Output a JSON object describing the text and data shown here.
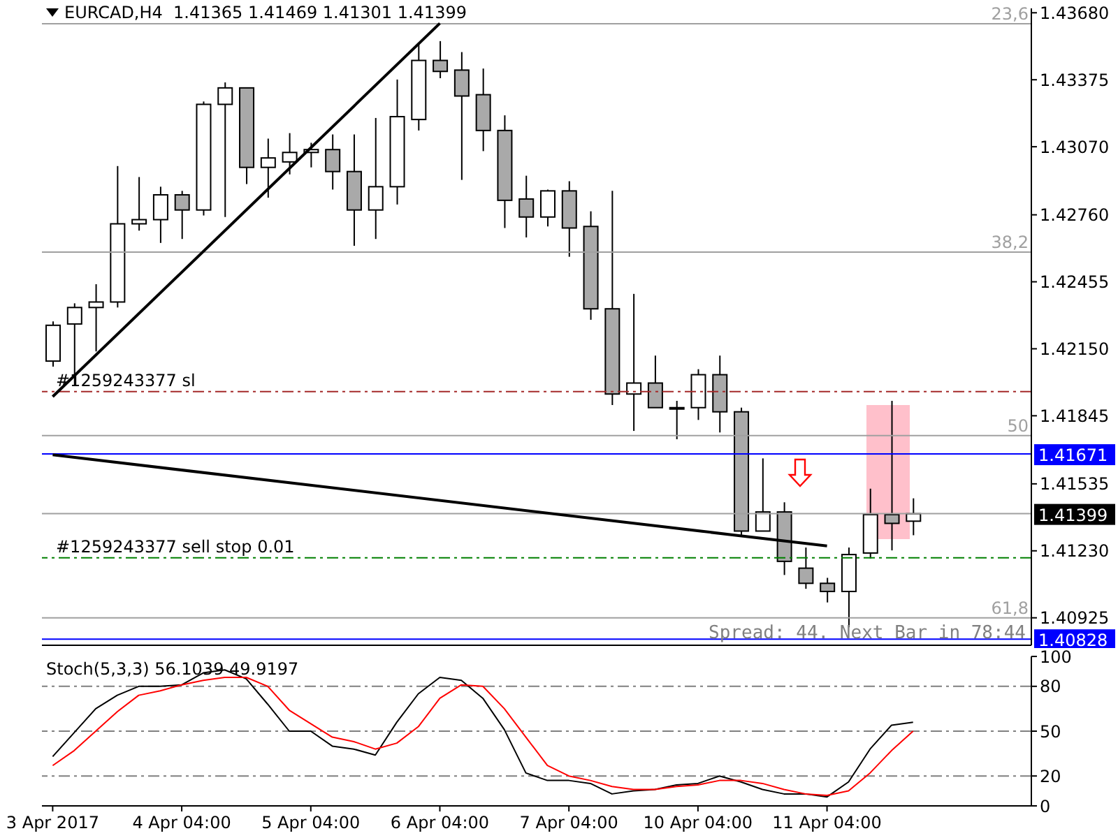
{
  "chart_data": [
    {
      "type": "candlestick",
      "title": "EURCAD,H4  1.41365 1.41469 1.41301 1.41399",
      "tick_labels": "y",
      "categories": [
        "3 Apr 2017",
        null,
        null,
        null,
        null,
        null,
        "4 Apr 04:00",
        null,
        null,
        null,
        null,
        null,
        "5 Apr 04:00",
        null,
        null,
        null,
        null,
        null,
        "6 Apr 04:00",
        null,
        null,
        null,
        null,
        null,
        "7 Apr 04:00",
        null,
        null,
        null,
        null,
        null,
        "10 Apr 04:00",
        null,
        null,
        null,
        null,
        null,
        "11 Apr 04:00",
        null,
        null,
        null,
        null,
        null,
        null,
        null,
        null,
        null
      ],
      "ohlc": [
        [
          1.42094,
          1.42275,
          1.42069,
          1.42257
        ],
        [
          1.42263,
          1.42357,
          1.41982,
          1.42338
        ],
        [
          1.42338,
          1.42444,
          1.42138,
          1.42363
        ],
        [
          1.42363,
          1.42982,
          1.42338,
          1.42719
        ],
        [
          1.42719,
          1.42932,
          1.42688,
          1.42738
        ],
        [
          1.42738,
          1.42888,
          1.42632,
          1.42851
        ],
        [
          1.42851,
          1.42869,
          1.4265,
          1.42782
        ],
        [
          1.42782,
          1.43276,
          1.42757,
          1.43263
        ],
        [
          1.43263,
          1.43363,
          1.4275,
          1.43338
        ],
        [
          1.43338,
          1.43338,
          1.429,
          1.42976
        ],
        [
          1.42976,
          1.43107,
          1.42838,
          1.43019
        ],
        [
          1.43001,
          1.43132,
          1.42944,
          1.43044
        ],
        [
          1.43044,
          1.43088,
          1.42976,
          1.43057
        ],
        [
          1.43057,
          1.43126,
          1.42875,
          1.42957
        ],
        [
          1.42957,
          1.43126,
          1.42619,
          1.42782
        ],
        [
          1.42782,
          1.43201,
          1.4265,
          1.42888
        ],
        [
          1.42888,
          1.43376,
          1.42807,
          1.43207
        ],
        [
          1.43194,
          1.43538,
          1.43144,
          1.43463
        ],
        [
          1.43463,
          1.43551,
          1.43382,
          1.43413
        ],
        [
          1.43419,
          1.43501,
          1.42919,
          1.43301
        ],
        [
          1.43307,
          1.43426,
          1.4305,
          1.43144
        ],
        [
          1.43144,
          1.43213,
          1.427,
          1.42826
        ],
        [
          1.42832,
          1.42938,
          1.42657,
          1.4275
        ],
        [
          1.4275,
          1.42875,
          1.42707,
          1.42869
        ],
        [
          1.42869,
          1.42913,
          1.42569,
          1.427
        ],
        [
          1.42707,
          1.42776,
          1.42282,
          1.42332
        ],
        [
          1.42332,
          1.42869,
          1.41894,
          1.41944
        ],
        [
          1.41944,
          1.424,
          1.41776,
          1.41994
        ],
        [
          1.41994,
          1.42119,
          1.41882,
          1.41882
        ],
        [
          1.41882,
          1.41913,
          1.41738,
          1.41882
        ],
        [
          1.41882,
          1.42057,
          1.41826,
          1.42032
        ],
        [
          1.42032,
          1.42119,
          1.41769,
          1.41863
        ],
        [
          1.41863,
          1.41882,
          1.41295,
          1.4132
        ],
        [
          1.4132,
          1.41651,
          1.4132,
          1.41407
        ],
        [
          1.41407,
          1.41451,
          1.4112,
          1.41182
        ],
        [
          1.41151,
          1.41245,
          1.41057,
          1.41082
        ],
        [
          1.41082,
          1.41107,
          1.40995,
          1.41045
        ],
        [
          1.41045,
          1.41245,
          1.40882,
          1.41213
        ],
        [
          1.4122,
          1.41513,
          1.41195,
          1.41395
        ],
        [
          1.41395,
          1.41913,
          1.41232,
          1.41355
        ],
        [
          1.41365,
          1.41469,
          1.41301,
          1.41399
        ],
        null,
        null,
        null,
        null,
        null
      ],
      "series": [
        {
          "type": "line",
          "color": "#000000",
          "x": [
            "3 Apr 2017",
            "6 Apr 04:00"
          ],
          "values": [
            1.41932,
            1.43632
          ]
        },
        {
          "type": "line",
          "color": "#000000",
          "x": [
            "3 Apr 2017",
            "11 Apr 04:00"
          ],
          "values": [
            1.41667,
            1.41252
          ]
        }
      ],
      "ylim": [
        1.408,
        1.437
      ],
      "yticks": [
        {
          "value": 1.4368,
          "label": "1.43680"
        },
        1.43375,
        {
          "value": 1.4307,
          "label": "1.43070"
        },
        {
          "value": 1.4276,
          "label": "1.42760"
        },
        1.42455,
        {
          "value": 1.4215,
          "label": "1.42150"
        },
        1.41845,
        1.41535,
        {
          "value": 1.4123,
          "label": "1.41230"
        },
        1.40925
      ],
      "ref_lines": [
        {
          "axis": "y",
          "value": 1.4363,
          "color": "#a0a0a0"
        },
        {
          "axis": "y",
          "value": 1.4259,
          "color": "#a0a0a0"
        },
        {
          "axis": "y",
          "value": 1.41755,
          "color": "#a0a0a0"
        },
        {
          "axis": "y",
          "value": 1.40925,
          "color": "#a0a0a0"
        },
        {
          "axis": "y",
          "value": 1.41955,
          "label": "#1259243377 sl",
          "color": "#a52a2a",
          "line_style": "dashed"
        },
        {
          "axis": "y",
          "value": 1.41198,
          "label": "#1259243377 sell stop 0.01",
          "color": "#008000",
          "line_style": "dashed"
        },
        {
          "axis": "y",
          "value": 1.41671,
          "label": "1.41671",
          "color": "#0000ff"
        },
        {
          "axis": "y",
          "value": 1.41399,
          "label": "1.41399",
          "color": "#a0a0a0"
        },
        {
          "axis": "y",
          "value": 1.40828,
          "label": "1.40828",
          "color": "#0000ff"
        }
      ],
      "annotations": [
        "Spread: 44. Next Bar in 78:44",
        {
          "text": "23,6",
          "y": 1.4363
        },
        {
          "text": "38,2",
          "y": 1.4259
        },
        {
          "text": "50",
          "y": 1.41755
        },
        {
          "text": "61,8",
          "y": 1.40925
        }
      ]
    },
    {
      "type": "line",
      "title": "Stoch(5,3,3) 56.1039 49.9197",
      "categories": [
        "3 Apr 2017",
        null,
        null,
        null,
        null,
        null,
        "4 Apr 04:00",
        null,
        null,
        null,
        null,
        null,
        "5 Apr 04:00",
        null,
        null,
        null,
        null,
        null,
        "6 Apr 04:00",
        null,
        null,
        null,
        null,
        null,
        "7 Apr 04:00",
        null,
        null,
        null,
        null,
        null,
        "10 Apr 04:00",
        null,
        null,
        null,
        null,
        null,
        "11 Apr 04:00",
        null,
        null,
        null,
        null,
        null,
        null,
        null,
        null,
        null
      ],
      "series": [
        {
          "color": "#000000",
          "values": [
            33,
            49,
            65,
            74,
            80,
            80,
            81,
            89,
            91,
            85,
            68,
            50,
            50,
            40,
            38,
            34,
            56,
            75,
            86,
            84,
            72,
            51,
            22,
            17,
            17,
            15,
            8,
            10,
            11,
            14,
            15,
            20,
            16,
            11,
            8,
            8,
            6,
            16,
            38,
            54,
            56,
            null,
            null,
            null,
            null,
            null
          ]
        },
        {
          "color": "#ff0000",
          "values": [
            27,
            37,
            50,
            63,
            74,
            77,
            81,
            84,
            86,
            86,
            80,
            64,
            55,
            46,
            43,
            38,
            42,
            53,
            72,
            81,
            80,
            65,
            46,
            27,
            20,
            17,
            13,
            11,
            11,
            13,
            14,
            17,
            17,
            15,
            11,
            8,
            7,
            10,
            22,
            37,
            50,
            null,
            null,
            null,
            null,
            null
          ]
        }
      ],
      "ylim": [
        0,
        100
      ],
      "yticks": [
        0,
        20,
        50,
        80,
        100
      ],
      "ref_lines": [
        {
          "axis": "y",
          "value": 80,
          "color": "#808080",
          "line_style": "dashed"
        },
        {
          "axis": "y",
          "value": 50,
          "color": "#808080",
          "line_style": "dashed"
        },
        {
          "axis": "y",
          "value": 20,
          "color": "#808080",
          "line_style": "dashed"
        }
      ]
    }
  ]
}
